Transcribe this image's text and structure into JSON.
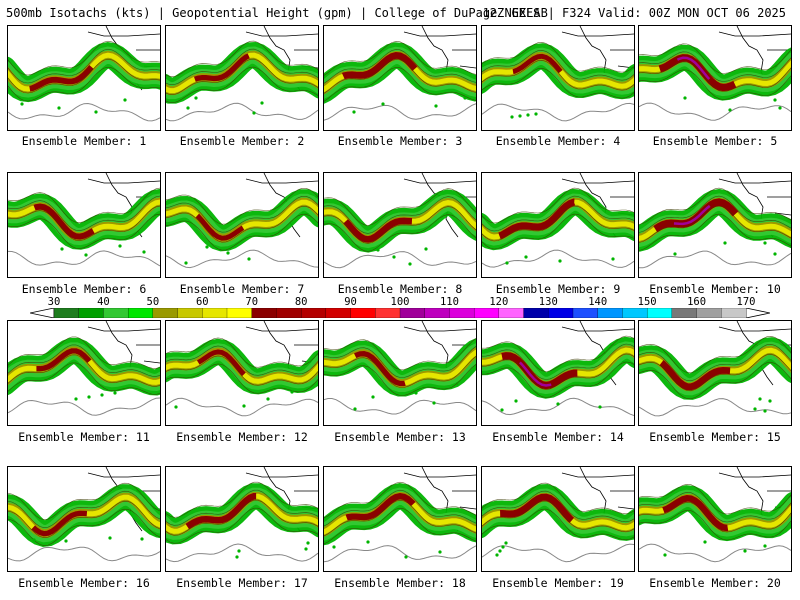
{
  "header": {
    "left": "500mb Isotachs (kts) | Geopotential Height (gpm) | College of DuPage NEXLAB",
    "right": "12Z GEFS | F324 Valid: 00Z MON OCT 06 2025"
  },
  "members": [
    {
      "label": "Ensemble Member: 1",
      "core": 0.55,
      "phase": 0.0
    },
    {
      "label": "Ensemble Member: 2",
      "core": 0.45,
      "phase": 0.8
    },
    {
      "label": "Ensemble Member: 3",
      "core": 0.75,
      "phase": 1.6
    },
    {
      "label": "Ensemble Member: 4",
      "core": 0.4,
      "phase": 2.4
    },
    {
      "label": "Ensemble Member: 5",
      "core": 0.85,
      "phase": 3.2
    },
    {
      "label": "Ensemble Member: 6",
      "core": 0.6,
      "phase": 4.0
    },
    {
      "label": "Ensemble Member: 7",
      "core": 0.4,
      "phase": 4.8
    },
    {
      "label": "Ensemble Member: 8",
      "core": 0.7,
      "phase": 5.6
    },
    {
      "label": "Ensemble Member: 9",
      "core": 0.8,
      "phase": 0.4
    },
    {
      "label": "Ensemble Member: 10",
      "core": 0.9,
      "phase": 1.2
    },
    {
      "label": "Ensemble Member: 11",
      "core": 0.45,
      "phase": 2.0
    },
    {
      "label": "Ensemble Member: 12",
      "core": 0.4,
      "phase": 2.8
    },
    {
      "label": "Ensemble Member: 13",
      "core": 0.45,
      "phase": 3.6
    },
    {
      "label": "Ensemble Member: 14",
      "core": 0.85,
      "phase": 4.4
    },
    {
      "label": "Ensemble Member: 15",
      "core": 0.75,
      "phase": 5.2
    },
    {
      "label": "Ensemble Member: 16",
      "core": 0.45,
      "phase": 6.0
    },
    {
      "label": "Ensemble Member: 17",
      "core": 0.7,
      "phase": 0.6
    },
    {
      "label": "Ensemble Member: 18",
      "core": 0.65,
      "phase": 1.4
    },
    {
      "label": "Ensemble Member: 19",
      "core": 0.8,
      "phase": 2.2
    },
    {
      "label": "Ensemble Member: 20",
      "core": 0.7,
      "phase": 3.0
    }
  ],
  "colorbar": {
    "ticks": [
      "30",
      "40",
      "50",
      "60",
      "70",
      "80",
      "90",
      "100",
      "110",
      "120",
      "130",
      "140",
      "150",
      "160",
      "170"
    ],
    "colors": [
      "#1e7d1e",
      "#00a000",
      "#32c832",
      "#00e600",
      "#9a9a00",
      "#c8c800",
      "#e6e600",
      "#ffff00",
      "#8b0000",
      "#a00000",
      "#b40000",
      "#d20000",
      "#ff0000",
      "#ff3232",
      "#a0009a",
      "#be00be",
      "#dc00dc",
      "#ff00ff",
      "#ff64ff",
      "#0000aa",
      "#0000e6",
      "#1e50ff",
      "#0096ff",
      "#00c8ff",
      "#00ffff",
      "#787878",
      "#a0a0a0",
      "#c8c8c8"
    ]
  }
}
